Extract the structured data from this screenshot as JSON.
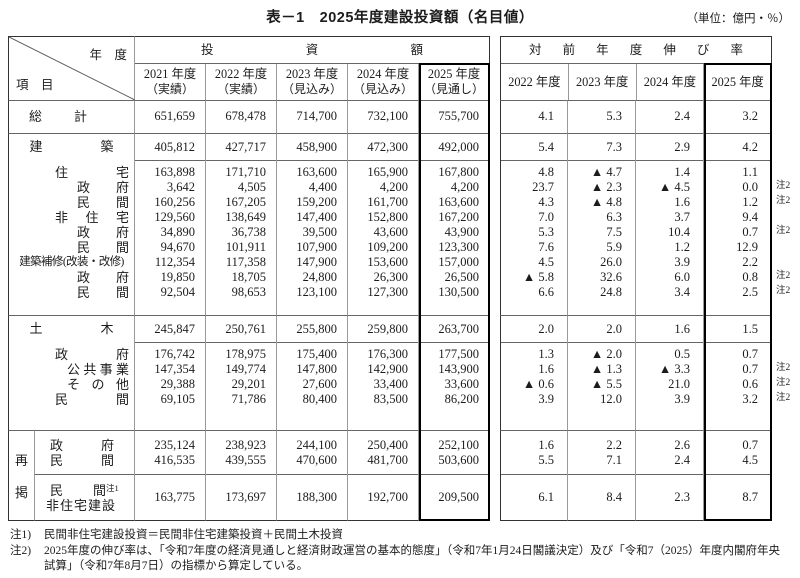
{
  "title": "表－1　2025年度建設投資額（名目値）",
  "unit_label": "（単位：億円・％）",
  "left_table": {
    "corner_top": "年　度",
    "corner_bottom": "項　目",
    "group_header": "投資額",
    "col_headers": [
      {
        "l1": "2021 年度",
        "l2": "（実績）"
      },
      {
        "l1": "2022 年度",
        "l2": "（実績）"
      },
      {
        "l1": "2023 年度",
        "l2": "（見込み）"
      },
      {
        "l1": "2024 年度",
        "l2": "（見込み）"
      },
      {
        "l1": "2025 年度",
        "l2": "（見通し）"
      }
    ]
  },
  "right_table": {
    "group_header": "対前年度伸び率",
    "col_headers": [
      "2022 年度",
      "2023 年度",
      "2024 年度",
      "2025 年度"
    ]
  },
  "sections": [
    {
      "name": "total",
      "head": {
        "label": "総計",
        "cls": "l0n",
        "inv": [
          "651,659",
          "678,478",
          "714,700",
          "732,100",
          "755,700"
        ],
        "gr": [
          "4.1",
          "5.3",
          "2.4",
          "3.2"
        ],
        "note": ""
      },
      "rows": []
    },
    {
      "name": "building",
      "head": {
        "label": "建築",
        "cls": "l0",
        "inv": [
          "405,812",
          "427,717",
          "458,900",
          "472,300",
          "492,000"
        ],
        "gr": [
          "5.4",
          "7.3",
          "2.9",
          "4.2"
        ],
        "note": ""
      },
      "rows": [
        {
          "label": "住宅",
          "cls": "l1",
          "inv": [
            "163,898",
            "171,710",
            "163,600",
            "165,900",
            "167,800"
          ],
          "gr": [
            "4.8",
            "▲ 4.7",
            "1.4",
            "1.1"
          ],
          "note": ""
        },
        {
          "label": "政府",
          "cls": "l2",
          "inv": [
            "3,642",
            "4,505",
            "4,400",
            "4,200",
            "4,200"
          ],
          "gr": [
            "23.7",
            "▲ 2.3",
            "▲ 4.5",
            "0.0"
          ],
          "note": "注2"
        },
        {
          "label": "民間",
          "cls": "l2",
          "inv": [
            "160,256",
            "167,205",
            "159,200",
            "161,700",
            "163,600"
          ],
          "gr": [
            "4.3",
            "▲ 4.8",
            "1.6",
            "1.2"
          ],
          "note": "注2"
        },
        {
          "label": "非住宅",
          "cls": "l1",
          "inv": [
            "129,560",
            "138,649",
            "147,400",
            "152,800",
            "167,200"
          ],
          "gr": [
            "7.0",
            "6.3",
            "3.7",
            "9.4"
          ],
          "note": ""
        },
        {
          "label": "政府",
          "cls": "l2",
          "inv": [
            "34,890",
            "36,738",
            "39,500",
            "43,600",
            "43,900"
          ],
          "gr": [
            "5.3",
            "7.5",
            "10.4",
            "0.7"
          ],
          "note": "注2"
        },
        {
          "label": "民間",
          "cls": "l2",
          "inv": [
            "94,670",
            "101,911",
            "107,900",
            "109,200",
            "123,300"
          ],
          "gr": [
            "7.6",
            "5.9",
            "1.2",
            "12.9"
          ],
          "note": ""
        },
        {
          "label": "建築補修(改装・改修)",
          "cls": "lfull",
          "inv": [
            "112,354",
            "117,358",
            "147,900",
            "153,600",
            "157,000"
          ],
          "gr": [
            "4.5",
            "26.0",
            "3.9",
            "2.2"
          ],
          "note": ""
        },
        {
          "label": "政府",
          "cls": "l2",
          "inv": [
            "19,850",
            "18,705",
            "24,800",
            "26,300",
            "26,500"
          ],
          "gr": [
            "▲ 5.8",
            "32.6",
            "6.0",
            "0.8"
          ],
          "note": "注2"
        },
        {
          "label": "民間",
          "cls": "l2",
          "inv": [
            "92,504",
            "98,653",
            "123,100",
            "127,300",
            "130,500"
          ],
          "gr": [
            "6.6",
            "24.8",
            "3.4",
            "2.5"
          ],
          "note": "注2"
        }
      ]
    },
    {
      "name": "civil",
      "head": {
        "label": "土木",
        "cls": "l0",
        "inv": [
          "245,847",
          "250,761",
          "255,800",
          "259,800",
          "263,700"
        ],
        "gr": [
          "2.0",
          "2.0",
          "1.6",
          "1.5"
        ],
        "note": ""
      },
      "rows": [
        {
          "label": "政府",
          "cls": "l1",
          "inv": [
            "176,742",
            "178,975",
            "175,400",
            "176,300",
            "177,500"
          ],
          "gr": [
            "1.3",
            "▲ 2.0",
            "0.5",
            "0.7"
          ],
          "note": ""
        },
        {
          "label": "公共事業",
          "cls": "l3",
          "inv": [
            "147,354",
            "149,774",
            "147,800",
            "142,900",
            "143,900"
          ],
          "gr": [
            "1.6",
            "▲ 1.3",
            "▲ 3.3",
            "0.7"
          ],
          "note": "注2"
        },
        {
          "label": "その他",
          "cls": "l3",
          "inv": [
            "29,388",
            "29,201",
            "27,600",
            "33,400",
            "33,600"
          ],
          "gr": [
            "▲ 0.6",
            "▲ 5.5",
            "21.0",
            "0.6"
          ],
          "note": "注2"
        },
        {
          "label": "民間",
          "cls": "l1",
          "inv": [
            "69,105",
            "71,786",
            "80,400",
            "83,500",
            "86,200"
          ],
          "gr": [
            "3.9",
            "12.0",
            "3.9",
            "3.2"
          ],
          "note": "注2"
        }
      ]
    }
  ],
  "reprint": {
    "side_label": "再掲",
    "subA": [
      {
        "label": "政府",
        "inv": [
          "235,124",
          "238,923",
          "244,100",
          "250,400",
          "252,100"
        ],
        "gr": [
          "1.6",
          "2.2",
          "2.6",
          "0.7"
        ],
        "note": ""
      },
      {
        "label": "民間",
        "inv": [
          "416,535",
          "439,555",
          "470,600",
          "481,700",
          "503,600"
        ],
        "gr": [
          "5.5",
          "7.1",
          "2.4",
          "4.5"
        ],
        "note": ""
      }
    ],
    "subB": {
      "label": "民間",
      "sup": "注1",
      "label2": "非住宅建設",
      "inv": [
        "163,775",
        "173,697",
        "188,300",
        "192,700",
        "209,500"
      ],
      "gr": [
        "6.1",
        "8.4",
        "2.3",
        "8.7"
      ],
      "note": ""
    }
  },
  "footnotes": [
    {
      "tag": "注1)",
      "text": "民間非住宅建設投資＝民間非住宅建築投資＋民間土木投資"
    },
    {
      "tag": "注2)",
      "text": "2025年度の伸び率は、「令和7年度の経済見通しと経済財政運営の基本的態度」（令和7年1月24日閣議決定）及び「令和7（2025）年度内閣府年央試算」（令和7年8月7日）の指標から算定している。"
    }
  ]
}
